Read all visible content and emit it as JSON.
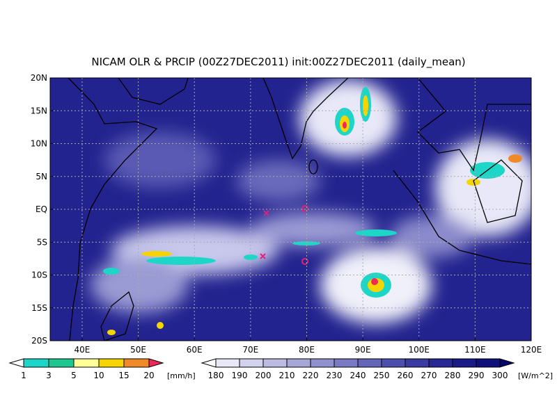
{
  "header": {
    "title": "NICAM OLR & PRCIP (00Z27DEC2011) init:00Z27DEC2011 (daily_mean)"
  },
  "map": {
    "xlim": [
      34.3,
      120
    ],
    "ylim": [
      -20,
      20
    ],
    "xticks": [
      {
        "value": 40,
        "label": "40E"
      },
      {
        "value": 50,
        "label": "50E"
      },
      {
        "value": 60,
        "label": "60E"
      },
      {
        "value": 70,
        "label": "70E"
      },
      {
        "value": 80,
        "label": "80E"
      },
      {
        "value": 90,
        "label": "90E"
      },
      {
        "value": 100,
        "label": "100E"
      },
      {
        "value": 110,
        "label": "110E"
      },
      {
        "value": 120,
        "label": "120E"
      }
    ],
    "yticks": [
      {
        "value": 20,
        "label": "20N"
      },
      {
        "value": 15,
        "label": "15N"
      },
      {
        "value": 10,
        "label": "10N"
      },
      {
        "value": 5,
        "label": "5N"
      },
      {
        "value": 0,
        "label": "EQ"
      },
      {
        "value": -5,
        "label": "5S"
      },
      {
        "value": -10,
        "label": "10S"
      },
      {
        "value": -15,
        "label": "15S"
      },
      {
        "value": -20,
        "label": "20S"
      }
    ]
  },
  "legends": [
    {
      "levels": [
        1,
        3,
        5,
        10,
        15,
        20
      ],
      "colors": [
        "#ffffff",
        "#1ed6c8",
        "#1fc690",
        "#ffff9a",
        "#f5d400",
        "#f08a28",
        "#f0285a"
      ],
      "unit": "[mm/h]"
    },
    {
      "levels": [
        180,
        190,
        200,
        210,
        220,
        230,
        240,
        250,
        260,
        270,
        280,
        290,
        300
      ],
      "colors": [
        "#ffffff",
        "#e8e8f6",
        "#d2d2ec",
        "#bcbce2",
        "#a6a6d8",
        "#9090ce",
        "#7a7ac4",
        "#6464b8",
        "#4e4eac",
        "#3a3aa0",
        "#282894",
        "#1a1a86",
        "#10107a",
        "#060668"
      ],
      "unit": "[W/m^2]"
    }
  ]
}
